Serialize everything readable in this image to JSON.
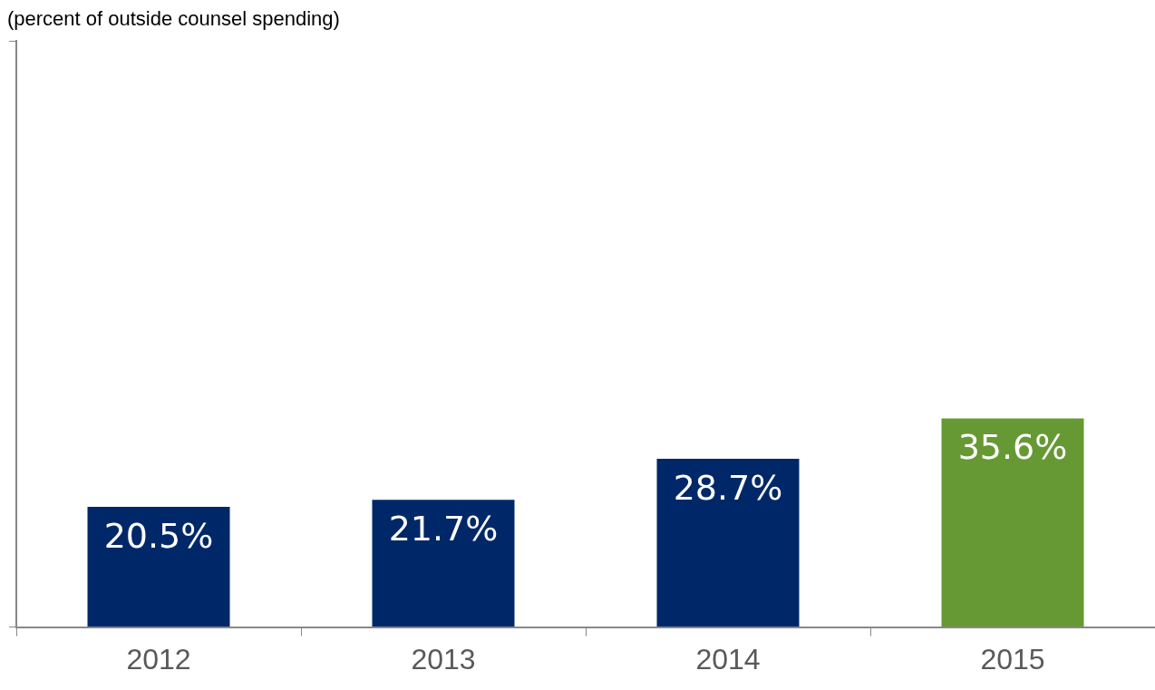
{
  "chart_data": {
    "type": "bar",
    "ylabel": "(percent of outside counsel spending)",
    "categories": [
      "2012",
      "2013",
      "2014",
      "2015"
    ],
    "values": [
      20.5,
      21.7,
      28.7,
      35.6
    ],
    "colors": [
      "#002868",
      "#002868",
      "#002868",
      "#669933"
    ],
    "value_labels": [
      "20.5%",
      "21.7%",
      "28.7%",
      "35.6%"
    ],
    "ylim": [
      0,
      100
    ],
    "yticks": [
      {
        "value": 0,
        "label": null
      },
      {
        "value": 100,
        "label": null
      }
    ],
    "tick_labels": "x",
    "grid": false,
    "legend": false
  }
}
